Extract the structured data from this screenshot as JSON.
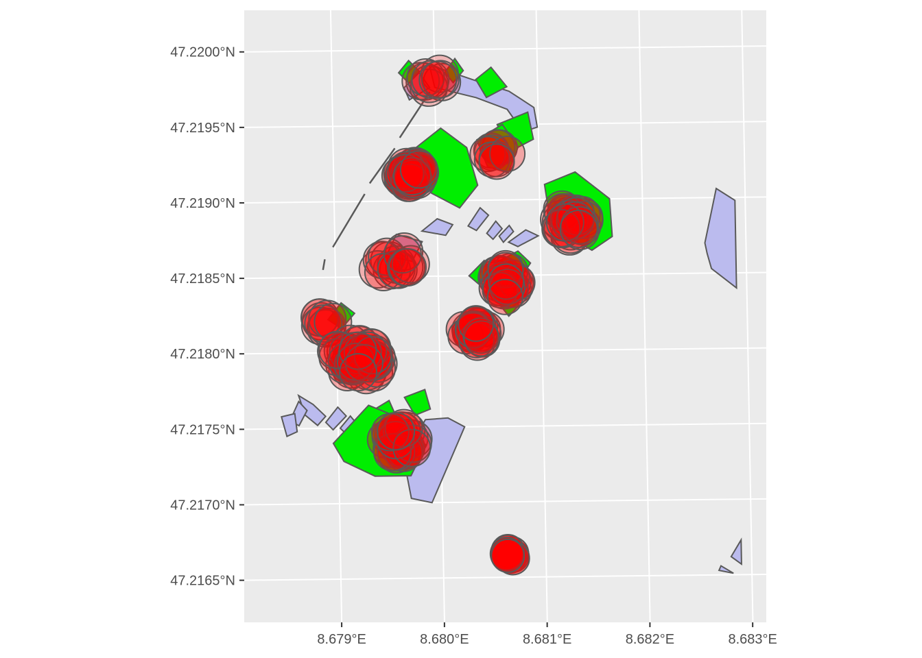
{
  "map": {
    "type": "sf-map",
    "panel_background": "#ebebeb",
    "gridline_color": "#ffffff",
    "outline_color": "#595959",
    "x_axis": {
      "range": [
        8.67812,
        8.68314
      ],
      "ticks": [
        {
          "value": 8.679,
          "label": "8.679°E"
        },
        {
          "value": 8.68,
          "label": "8.680°E"
        },
        {
          "value": 8.681,
          "label": "8.681°E"
        },
        {
          "value": 8.682,
          "label": "8.682°E"
        },
        {
          "value": 8.683,
          "label": "8.683°E"
        }
      ]
    },
    "y_axis": {
      "range": [
        47.21622,
        47.22026
      ],
      "ticks": [
        {
          "value": 47.2165,
          "label": "47.2165°N"
        },
        {
          "value": 47.217,
          "label": "47.2170°N"
        },
        {
          "value": 47.2175,
          "label": "47.2175°N"
        },
        {
          "value": 47.218,
          "label": "47.2180°N"
        },
        {
          "value": 47.2185,
          "label": "47.2185°N"
        },
        {
          "value": 47.219,
          "label": "47.2190°N"
        },
        {
          "value": 47.2195,
          "label": "47.2195°N"
        },
        {
          "value": 47.22,
          "label": "47.2200°N"
        }
      ]
    },
    "layers": {
      "buildings": {
        "fill": "#bbbbee",
        "features": [
          [
            [
              8.68272,
              47.21906
            ],
            [
              8.6829,
              47.21898
            ],
            [
              8.6829,
              47.2184
            ],
            [
              8.68266,
              47.21853
            ],
            [
              8.68262,
              47.21863
            ],
            [
              8.6826,
              47.2187
            ],
            [
              8.68265,
              47.21885
            ]
          ],
          [
            [
              8.67995,
              47.2199
            ],
            [
              8.68045,
              47.21978
            ],
            [
              8.68072,
              47.21972
            ],
            [
              8.68096,
              47.21961
            ],
            [
              8.68099,
              47.21948
            ],
            [
              8.68085,
              47.21945
            ],
            [
              8.6807,
              47.2196
            ],
            [
              8.6804,
              47.21968
            ],
            [
              8.68,
              47.21975
            ]
          ],
          [
            [
              8.6797,
              47.21975
            ],
            [
              8.67985,
              47.21985
            ],
            [
              8.67995,
              47.21975
            ],
            [
              8.67975,
              47.21967
            ]
          ],
          [
            [
              8.6795,
              47.21864
            ],
            [
              8.6796,
              47.21878
            ],
            [
              8.67985,
              47.21873
            ],
            [
              8.67975,
              47.2186
            ]
          ],
          [
            [
              8.67985,
              47.2188
            ],
            [
              8.68,
              47.21888
            ],
            [
              8.68015,
              47.21884
            ],
            [
              8.68008,
              47.21877
            ]
          ],
          [
            [
              8.6803,
              47.21883
            ],
            [
              8.68042,
              47.21895
            ],
            [
              8.6805,
              47.2189
            ],
            [
              8.68038,
              47.2188
            ]
          ],
          [
            [
              8.68048,
              47.21878
            ],
            [
              8.68057,
              47.21886
            ],
            [
              8.68063,
              47.21881
            ],
            [
              8.68054,
              47.21874
            ]
          ],
          [
            [
              8.6806,
              47.21876
            ],
            [
              8.6807,
              47.21883
            ],
            [
              8.68074,
              47.21879
            ],
            [
              8.68064,
              47.21872
            ]
          ],
          [
            [
              8.68069,
              47.21872
            ],
            [
              8.68086,
              47.2188
            ],
            [
              8.68098,
              47.21876
            ],
            [
              8.68078,
              47.21869
            ]
          ],
          [
            [
              8.67862,
              47.21772
            ],
            [
              8.67868,
              47.21759
            ],
            [
              8.6788,
              47.21752
            ],
            [
              8.67888,
              47.21758
            ],
            [
              8.67876,
              47.21766
            ]
          ],
          [
            [
              8.67853,
              47.21755
            ],
            [
              8.67862,
              47.21768
            ],
            [
              8.6787,
              47.21762
            ],
            [
              8.67862,
              47.21752
            ]
          ],
          [
            [
              8.67845,
              47.21758
            ],
            [
              8.67858,
              47.2176
            ],
            [
              8.6786,
              47.21748
            ],
            [
              8.6785,
              47.21745
            ]
          ],
          [
            [
              8.67888,
              47.21754
            ],
            [
              8.679,
              47.21764
            ],
            [
              8.67908,
              47.21758
            ],
            [
              8.67895,
              47.21749
            ]
          ],
          [
            [
              8.67902,
              47.2175
            ],
            [
              8.67912,
              47.21758
            ],
            [
              8.67918,
              47.21753
            ],
            [
              8.67908,
              47.21746
            ]
          ],
          [
            [
              8.67913,
              47.21745
            ],
            [
              8.67925,
              47.21753
            ],
            [
              8.6793,
              47.21748
            ],
            [
              8.6792,
              47.2174
            ]
          ],
          [
            [
              8.67925,
              47.2174
            ],
            [
              8.67935,
              47.21748
            ],
            [
              8.6794,
              47.21743
            ],
            [
              8.6793,
              47.21735
            ]
          ],
          [
            [
              8.67935,
              47.21735
            ],
            [
              8.67945,
              47.21743
            ],
            [
              8.6795,
              47.21738
            ],
            [
              8.6794,
              47.2173
            ]
          ],
          [
            [
              8.67945,
              47.2173
            ],
            [
              8.67955,
              47.21738
            ],
            [
              8.6796,
              47.21733
            ],
            [
              8.6795,
              47.21725
            ]
          ],
          [
            [
              8.67955,
              47.21725
            ],
            [
              8.67965,
              47.21733
            ],
            [
              8.6797,
              47.21728
            ],
            [
              8.6796,
              47.2172
            ]
          ],
          [
            [
              8.67965,
              47.2172
            ],
            [
              8.67975,
              47.21728
            ],
            [
              8.6798,
              47.21723
            ],
            [
              8.6797,
              47.21715
            ]
          ],
          [
            [
              8.67985,
              47.21755
            ],
            [
              8.68007,
              47.21756
            ],
            [
              8.68023,
              47.2175
            ],
            [
              8.6799,
              47.217
            ],
            [
              8.6797,
              47.21703
            ],
            [
              8.67963,
              47.2173
            ]
          ],
          [
            [
              8.68268,
              47.21653
            ],
            [
              8.68282,
              47.21651
            ],
            [
              8.6827,
              47.21656
            ]
          ],
          [
            [
              8.6828,
              47.21662
            ],
            [
              8.6829,
              47.21673
            ],
            [
              8.6829,
              47.21657
            ]
          ]
        ]
      },
      "green_areas": {
        "fill": "#00ee00",
        "features": [
          [
            [
              8.67965,
              47.21985
            ],
            [
              8.67975,
              47.21993
            ],
            [
              8.67985,
              47.21986
            ],
            [
              8.67975,
              47.21978
            ]
          ],
          [
            [
              8.6801,
              47.21985
            ],
            [
              8.6802,
              47.21994
            ],
            [
              8.68028,
              47.21986
            ],
            [
              8.68018,
              47.21978
            ]
          ],
          [
            [
              8.6804,
              47.2198
            ],
            [
              8.68055,
              47.21988
            ],
            [
              8.6807,
              47.21975
            ],
            [
              8.6805,
              47.21968
            ]
          ],
          [
            [
              8.6806,
              47.2195
            ],
            [
              8.6809,
              47.21958
            ],
            [
              8.68095,
              47.2194
            ],
            [
              8.68072,
              47.21932
            ]
          ],
          [
            [
              8.6798,
              47.21935
            ],
            [
              8.68005,
              47.21948
            ],
            [
              8.6803,
              47.21935
            ],
            [
              8.6804,
              47.2191
            ],
            [
              8.68022,
              47.21895
            ],
            [
              8.67995,
              47.21905
            ],
            [
              8.67985,
              47.2192
            ]
          ],
          [
            [
              8.6804,
              47.2194
            ],
            [
              8.68065,
              47.2195
            ],
            [
              8.6808,
              47.21935
            ],
            [
              8.6807,
              47.21918
            ],
            [
              8.6805,
              47.21922
            ]
          ],
          [
            [
              8.68105,
              47.2191
            ],
            [
              8.68135,
              47.21918
            ],
            [
              8.68168,
              47.219
            ],
            [
              8.6817,
              47.21875
            ],
            [
              8.6815,
              47.21866
            ],
            [
              8.6812,
              47.21878
            ],
            [
              8.68108,
              47.21895
            ]
          ],
          [
            [
              8.68055,
              47.21858
            ],
            [
              8.68078,
              47.21866
            ],
            [
              8.6809,
              47.21858
            ],
            [
              8.6808,
              47.21848
            ],
            [
              8.6806,
              47.2185
            ]
          ],
          [
            [
              8.6803,
              47.2185
            ],
            [
              8.68045,
              47.2186
            ],
            [
              8.68052,
              47.21852
            ],
            [
              8.6804,
              47.21844
            ]
          ],
          [
            [
              8.6806,
              47.2183
            ],
            [
              8.68072,
              47.21838
            ],
            [
              8.68078,
              47.2183
            ],
            [
              8.68068,
              47.21823
            ]
          ],
          [
            [
              8.67892,
              47.21822
            ],
            [
              8.67905,
              47.21833
            ],
            [
              8.67918,
              47.21826
            ],
            [
              8.67905,
              47.21816
            ]
          ],
          [
            [
              8.6793,
              47.2176
            ],
            [
              8.6795,
              47.21768
            ],
            [
              8.67958,
              47.21755
            ],
            [
              8.6794,
              47.21748
            ]
          ],
          [
            [
              8.67895,
              47.2174
            ],
            [
              8.6793,
              47.21765
            ],
            [
              8.67965,
              47.21755
            ],
            [
              8.67985,
              47.21738
            ],
            [
              8.6797,
              47.21718
            ],
            [
              8.67935,
              47.21718
            ],
            [
              8.67905,
              47.21728
            ]
          ],
          [
            [
              8.67965,
              47.2177
            ],
            [
              8.67985,
              47.21775
            ],
            [
              8.6799,
              47.21762
            ],
            [
              8.67975,
              47.21758
            ]
          ]
        ]
      },
      "boundary_lines": [
        [
          [
            8.67888,
            47.21855
          ],
          [
            8.6789,
            47.21862
          ]
        ],
        [
          [
            8.67898,
            47.2187
          ],
          [
            8.6793,
            47.21905
          ]
        ],
        [
          [
            8.67935,
            47.21912
          ],
          [
            8.6796,
            47.21935
          ]
        ],
        [
          [
            8.67965,
            47.21942
          ],
          [
            8.67995,
            47.21972
          ]
        ]
      ],
      "point_buffers": {
        "fill": "#ff0000",
        "clusters": [
          {
            "center": [
              8.67997,
              47.2198
            ],
            "spread": [
              0.00012,
              6e-05
            ],
            "count": 10,
            "radius": 0.00018,
            "opacity": 0.22,
            "seed": 1
          },
          {
            "center": [
              8.67975,
              47.21918
            ],
            "spread": [
              0.0001,
              7e-05
            ],
            "count": 32,
            "radius": 0.00018,
            "opacity": 0.35,
            "seed": 2
          },
          {
            "center": [
              8.6806,
              47.2193
            ],
            "spread": [
              0.0001,
              5e-05
            ],
            "count": 9,
            "radius": 0.00017,
            "opacity": 0.3,
            "seed": 3
          },
          {
            "center": [
              8.6813,
              47.21885
            ],
            "spread": [
              0.00016,
              0.0001
            ],
            "count": 28,
            "radius": 0.00018,
            "opacity": 0.25,
            "seed": 4
          },
          {
            "center": [
              8.67955,
              47.2186
            ],
            "spread": [
              0.00022,
              8e-05
            ],
            "count": 16,
            "radius": 0.00018,
            "opacity": 0.25,
            "seed": 5
          },
          {
            "center": [
              8.68065,
              47.21845
            ],
            "spread": [
              0.00012,
              0.0001
            ],
            "count": 26,
            "radius": 0.00017,
            "opacity": 0.35,
            "seed": 6
          },
          {
            "center": [
              8.68035,
              47.21812
            ],
            "spread": [
              0.00012,
              8e-05
            ],
            "count": 24,
            "radius": 0.00017,
            "opacity": 0.35,
            "seed": 7
          },
          {
            "center": [
              8.6789,
              47.2182
            ],
            "spread": [
              8e-05,
              6e-05
            ],
            "count": 9,
            "radius": 0.00018,
            "opacity": 0.25,
            "seed": 8
          },
          {
            "center": [
              8.6792,
              47.21795
            ],
            "spread": [
              0.00024,
              0.00012
            ],
            "count": 44,
            "radius": 0.00018,
            "opacity": 0.3,
            "seed": 9
          },
          {
            "center": [
              8.6796,
              47.2174
            ],
            "spread": [
              0.00014,
              0.0001
            ],
            "count": 28,
            "radius": 0.00018,
            "opacity": 0.3,
            "seed": 10
          },
          {
            "center": [
              8.68065,
              47.21665
            ],
            "spread": [
              5e-05,
              3e-05
            ],
            "count": 9,
            "radius": 0.00016,
            "opacity": 0.6,
            "seed": 11
          }
        ]
      }
    }
  }
}
